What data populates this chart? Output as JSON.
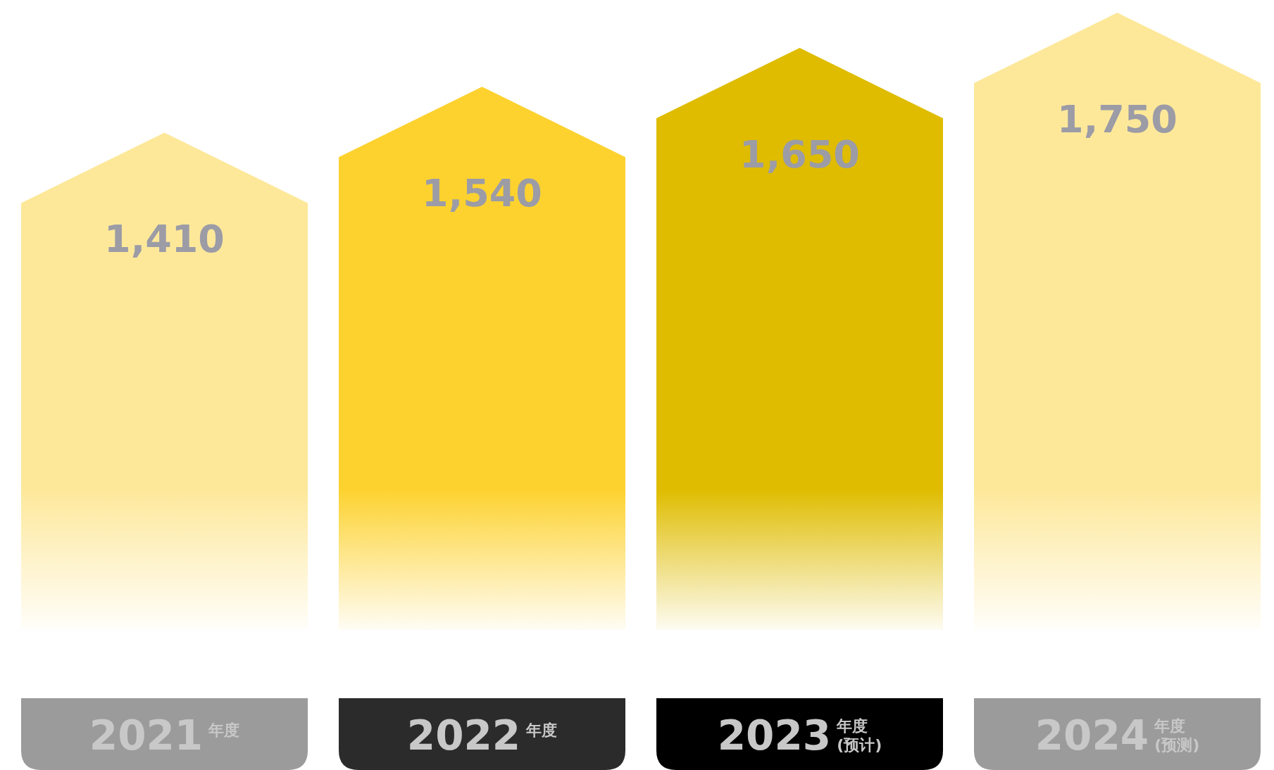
{
  "chart_data": {
    "type": "bar",
    "categories": [
      "2021年度",
      "2022年度",
      "2023年度(预计)",
      "2024年度(预测)"
    ],
    "values": [
      1410,
      1540,
      1650,
      1750
    ],
    "colors": [
      "#fde89a",
      "#fdd22f",
      "#dfbc00",
      "#fde89a"
    ],
    "value_labels": [
      "1,410",
      "1,540",
      "1,650",
      "1,750"
    ]
  }
}
